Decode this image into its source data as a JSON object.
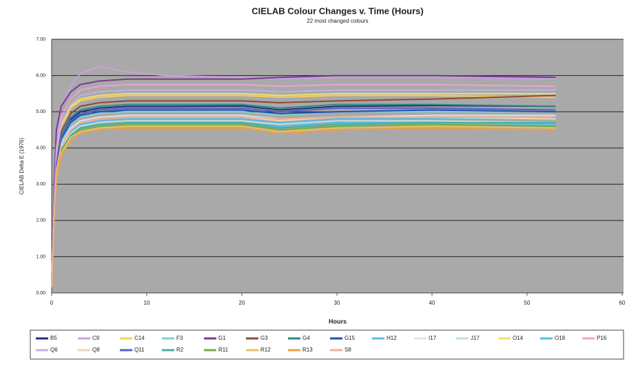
{
  "chart_data": {
    "type": "line",
    "title": "CIELAB Colour Changes v. Time (Hours)",
    "subtitle": "22 most changed colours",
    "x_label": "Hours",
    "y_label": "CIELAB Delta E (1976)",
    "x": [
      0,
      0.25,
      0.5,
      1,
      2,
      3,
      5,
      8,
      12,
      20,
      24,
      30,
      40,
      53
    ],
    "xlim": [
      0,
      60
    ],
    "xticks": [
      0,
      10,
      20,
      30,
      40,
      50,
      60
    ],
    "ylim": [
      0,
      7
    ],
    "yticks": [
      {
        "value": 0,
        "label": "0.00"
      },
      {
        "value": 1,
        "label": "1.00"
      },
      {
        "value": 2,
        "label": "2.00"
      },
      {
        "value": 3,
        "label": "3.00"
      },
      {
        "value": 4,
        "label": "4.00"
      },
      {
        "value": 5,
        "label": "5.00"
      },
      {
        "value": 6,
        "label": "6.00"
      },
      {
        "value": 7,
        "label": "7.00"
      }
    ],
    "grid": true,
    "legend": "bottom",
    "series": [
      {
        "name": "B5",
        "color": "#1f2f6e",
        "values": [
          0.21,
          2.32,
          3.61,
          4.33,
          4.79,
          5.0,
          5.1,
          5.15,
          5.15,
          5.16,
          5.05,
          5.15,
          5.17,
          5.15
        ]
      },
      {
        "name": "C9",
        "color": "#c8a0e0",
        "values": [
          0.25,
          2.7,
          4.2,
          5.1,
          5.7,
          6.05,
          6.25,
          6.1,
          6.0,
          5.95,
          5.9,
          5.95,
          5.95,
          5.9
        ]
      },
      {
        "name": "C14",
        "color": "#f0d060",
        "values": [
          0.2,
          2.45,
          3.8,
          4.6,
          5.1,
          5.3,
          5.4,
          5.45,
          5.45,
          5.45,
          5.4,
          5.45,
          5.45,
          5.4
        ]
      },
      {
        "name": "F3",
        "color": "#80d0d0",
        "values": [
          0.18,
          2.25,
          3.5,
          4.2,
          4.65,
          4.85,
          4.95,
          5.0,
          5.0,
          5.0,
          4.9,
          5.0,
          5.0,
          5.0
        ]
      },
      {
        "name": "G1",
        "color": "#7a3a90",
        "values": [
          0.3,
          3.0,
          4.5,
          5.15,
          5.55,
          5.75,
          5.85,
          5.9,
          5.9,
          5.9,
          5.95,
          6.0,
          6.0,
          5.95
        ]
      },
      {
        "name": "G3",
        "color": "#8a4a3a",
        "values": [
          0.2,
          2.4,
          3.7,
          4.45,
          4.95,
          5.15,
          5.25,
          5.3,
          5.3,
          5.3,
          5.25,
          5.3,
          5.35,
          5.45
        ]
      },
      {
        "name": "G4",
        "color": "#2a8a8a",
        "values": [
          0.19,
          2.35,
          3.65,
          4.35,
          4.85,
          5.05,
          5.15,
          5.2,
          5.2,
          5.2,
          5.1,
          5.2,
          5.2,
          5.15
        ]
      },
      {
        "name": "G15",
        "color": "#2050b0",
        "values": [
          0.2,
          2.3,
          3.55,
          4.25,
          4.7,
          4.9,
          5.0,
          5.05,
          5.05,
          5.05,
          4.95,
          5.0,
          5.05,
          5.0
        ]
      },
      {
        "name": "H12",
        "color": "#60b8e8",
        "values": [
          0.17,
          2.15,
          3.35,
          4.05,
          4.45,
          4.65,
          4.75,
          4.8,
          4.8,
          4.8,
          4.7,
          4.8,
          4.8,
          4.8
        ]
      },
      {
        "name": "I17",
        "color": "#e0e0f0",
        "values": [
          0.18,
          2.2,
          3.4,
          4.1,
          4.55,
          4.75,
          4.85,
          4.9,
          4.9,
          4.9,
          4.8,
          4.85,
          4.9,
          4.9
        ]
      },
      {
        "name": "J17",
        "color": "#c0e0e0",
        "values": [
          0.17,
          2.1,
          3.3,
          4.0,
          4.4,
          4.6,
          4.7,
          4.75,
          4.75,
          4.75,
          4.65,
          4.75,
          4.75,
          4.7
        ]
      },
      {
        "name": "O14",
        "color": "#f0e070",
        "values": [
          0.21,
          2.5,
          3.85,
          4.65,
          5.15,
          5.35,
          5.45,
          5.5,
          5.5,
          5.5,
          5.45,
          5.5,
          5.5,
          5.5
        ]
      },
      {
        "name": "O18",
        "color": "#50c0e0",
        "values": [
          0.16,
          2.1,
          3.3,
          3.95,
          4.35,
          4.55,
          4.65,
          4.7,
          4.7,
          4.7,
          4.6,
          4.7,
          4.7,
          4.65
        ]
      },
      {
        "name": "P16",
        "color": "#f0a0d0",
        "values": [
          0.22,
          2.6,
          4.0,
          4.85,
          5.35,
          5.6,
          5.7,
          5.75,
          5.75,
          5.75,
          5.7,
          5.75,
          5.75,
          5.7
        ]
      },
      {
        "name": "Q6",
        "color": "#c0b0e0",
        "values": [
          0.22,
          2.5,
          3.9,
          4.7,
          5.2,
          5.45,
          5.55,
          5.6,
          5.6,
          5.6,
          5.55,
          5.6,
          5.6,
          5.6
        ]
      },
      {
        "name": "Q8",
        "color": "#e8d8b0",
        "values": [
          0.18,
          2.2,
          3.4,
          4.05,
          4.5,
          4.7,
          4.8,
          4.85,
          4.85,
          4.85,
          4.75,
          4.85,
          4.85,
          4.8
        ]
      },
      {
        "name": "Q11",
        "color": "#5060c8",
        "values": [
          0.2,
          2.3,
          3.55,
          4.3,
          4.75,
          4.95,
          5.05,
          5.1,
          5.1,
          5.1,
          5.0,
          5.1,
          5.1,
          5.05
        ]
      },
      {
        "name": "R2",
        "color": "#40b0a0",
        "values": [
          0.17,
          2.1,
          3.3,
          3.95,
          4.35,
          4.55,
          4.65,
          4.7,
          4.7,
          4.7,
          4.55,
          4.65,
          4.7,
          4.7
        ]
      },
      {
        "name": "R11",
        "color": "#70b040",
        "values": [
          0.16,
          2.1,
          3.25,
          3.9,
          4.3,
          4.5,
          4.6,
          4.65,
          4.65,
          4.65,
          4.5,
          4.6,
          4.65,
          4.6
        ]
      },
      {
        "name": "R12",
        "color": "#e8c060",
        "values": [
          0.16,
          2.05,
          3.2,
          3.85,
          4.3,
          4.45,
          4.55,
          4.6,
          4.6,
          4.6,
          4.45,
          4.55,
          4.6,
          4.55
        ]
      },
      {
        "name": "R13",
        "color": "#f0a040",
        "values": [
          0.15,
          2.0,
          3.15,
          3.8,
          4.2,
          4.4,
          4.5,
          4.55,
          4.55,
          4.55,
          4.4,
          4.5,
          4.55,
          4.5
        ]
      },
      {
        "name": "S8",
        "color": "#f0b090",
        "values": [
          0.18,
          2.2,
          3.4,
          4.05,
          4.5,
          4.7,
          4.8,
          4.85,
          4.85,
          4.85,
          4.8,
          4.85,
          4.85,
          4.85
        ]
      }
    ]
  }
}
